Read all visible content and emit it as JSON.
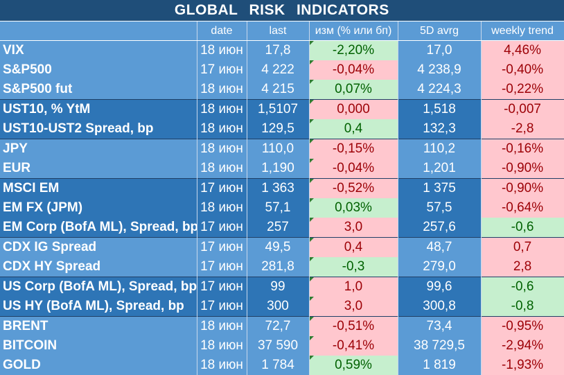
{
  "title": "GLOBAL   RISK   INDICATORS",
  "headers": {
    "name": "",
    "date": "date",
    "last": "last",
    "change": "изм (% или бп)",
    "avg5d": "5D avrg",
    "weekly": "weekly trend"
  },
  "colors": {
    "title_bg": "#1f4e79",
    "light_group": "#5b9bd5",
    "dark_group": "#2e75b6",
    "positive_fill": "#c6efce",
    "positive_text": "#006100",
    "negative_fill": "#ffc7ce",
    "negative_text": "#9c0006"
  },
  "rows": [
    {
      "name": "VIX",
      "date": "18 июн",
      "last": "17,8",
      "change": "-2,20%",
      "change_tone": "pos",
      "avg5d": "17,0",
      "weekly": "4,46%",
      "weekly_tone": "neg",
      "group": "light",
      "group_start": true
    },
    {
      "name": "S&P500",
      "date": "17 июн",
      "last": "4 222",
      "change": "-0,04%",
      "change_tone": "neg",
      "avg5d": "4 238,9",
      "weekly": "-0,40%",
      "weekly_tone": "neg",
      "group": "light",
      "group_start": false
    },
    {
      "name": "S&P500 fut",
      "date": "18 июн",
      "last": "4 215",
      "change": "0,07%",
      "change_tone": "pos",
      "avg5d": "4 224,3",
      "weekly": "-0,22%",
      "weekly_tone": "neg",
      "group": "light",
      "group_start": false
    },
    {
      "name": "UST10, % YtM",
      "date": "18 июн",
      "last": "1,5107",
      "change": "0,000",
      "change_tone": "neg",
      "avg5d": "1,518",
      "weekly": "-0,007",
      "weekly_tone": "neg",
      "group": "dark",
      "group_start": true
    },
    {
      "name": "UST10-UST2 Spread, bp",
      "date": "18 июн",
      "last": "129,5",
      "change": "0,4",
      "change_tone": "pos",
      "avg5d": "132,3",
      "weekly": "-2,8",
      "weekly_tone": "neg",
      "group": "dark",
      "group_start": false
    },
    {
      "name": "JPY",
      "date": "18 июн",
      "last": "110,0",
      "change": "-0,15%",
      "change_tone": "neg",
      "avg5d": "110,2",
      "weekly": "-0,16%",
      "weekly_tone": "neg",
      "group": "light",
      "group_start": true
    },
    {
      "name": "EUR",
      "date": "18 июн",
      "last": "1,190",
      "change": "-0,04%",
      "change_tone": "neg",
      "avg5d": "1,201",
      "weekly": "-0,90%",
      "weekly_tone": "neg",
      "group": "light",
      "group_start": false
    },
    {
      "name": "MSCI EM",
      "date": "17 июн",
      "last": "1 363",
      "change": "-0,52%",
      "change_tone": "neg",
      "avg5d": "1 375",
      "weekly": "-0,90%",
      "weekly_tone": "neg",
      "group": "dark",
      "group_start": true
    },
    {
      "name": "EM FX (JPM)",
      "date": "18 июн",
      "last": "57,1",
      "change": "0,03%",
      "change_tone": "pos",
      "avg5d": "57,5",
      "weekly": "-0,64%",
      "weekly_tone": "neg",
      "group": "dark",
      "group_start": false
    },
    {
      "name": "EM Corp (BofA ML), Spread, bp",
      "date": "17 июн",
      "last": "257",
      "change": "3,0",
      "change_tone": "neg",
      "avg5d": "257,6",
      "weekly": "-0,6",
      "weekly_tone": "pos",
      "group": "dark",
      "group_start": false
    },
    {
      "name": "CDX IG Spread",
      "date": "17 июн",
      "last": "49,5",
      "change": "0,4",
      "change_tone": "neg",
      "avg5d": "48,7",
      "weekly": "0,7",
      "weekly_tone": "neg",
      "group": "light",
      "group_start": true
    },
    {
      "name": "CDX HY Spread",
      "date": "17 июн",
      "last": "281,8",
      "change": "-0,3",
      "change_tone": "pos",
      "avg5d": "279,0",
      "weekly": "2,8",
      "weekly_tone": "neg",
      "group": "light",
      "group_start": false
    },
    {
      "name": "US Corp (BofA ML), Spread, bp",
      "date": "17 июн",
      "last": "99",
      "change": "1,0",
      "change_tone": "neg",
      "avg5d": "99,6",
      "weekly": "-0,6",
      "weekly_tone": "pos",
      "group": "dark",
      "group_start": true
    },
    {
      "name": "US HY (BofA ML), Spread, bp",
      "date": "17 июн",
      "last": "300",
      "change": "3,0",
      "change_tone": "neg",
      "avg5d": "300,8",
      "weekly": "-0,8",
      "weekly_tone": "pos",
      "group": "dark",
      "group_start": false
    },
    {
      "name": "BRENT",
      "date": "18 июн",
      "last": "72,7",
      "change": "-0,51%",
      "change_tone": "neg",
      "avg5d": "73,4",
      "weekly": "-0,95%",
      "weekly_tone": "neg",
      "group": "light",
      "group_start": true
    },
    {
      "name": "BITCOIN",
      "date": "18 июн",
      "last": "37 590",
      "change": "-0,41%",
      "change_tone": "neg",
      "avg5d": "38 729,5",
      "weekly": "-2,94%",
      "weekly_tone": "neg",
      "group": "light",
      "group_start": false
    },
    {
      "name": "GOLD",
      "date": "18 июн",
      "last": "1 784",
      "change": "0,59%",
      "change_tone": "pos",
      "avg5d": "1 819",
      "weekly": "-1,93%",
      "weekly_tone": "neg",
      "group": "light",
      "group_start": false
    }
  ]
}
